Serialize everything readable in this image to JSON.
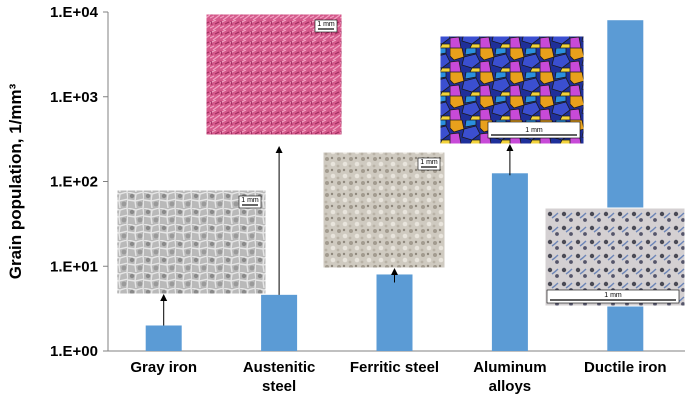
{
  "chart_data": {
    "type": "bar",
    "ylabel": "Grain population, 1/mm³",
    "yscale": "log",
    "ylim": [
      1,
      10000
    ],
    "yticks": [
      "1.E+00",
      "1.E+01",
      "1.E+02",
      "1.E+03",
      "1.E+04"
    ],
    "categories": [
      [
        "Gray iron"
      ],
      [
        "Austenitic",
        "steel"
      ],
      [
        "Ferritic steel"
      ],
      [
        "Aluminum",
        "alloys"
      ],
      [
        "Ductile iron"
      ]
    ],
    "values": [
      2,
      4.6,
      8,
      125,
      8000
    ],
    "bar_color": "#5b9bd5",
    "grid": false,
    "legend": "none",
    "insets": [
      {
        "category": "Gray iron",
        "content": "micrograph",
        "colors": [
          "#8c8c8c",
          "#cfcfcf"
        ],
        "scale_label": "1 mm"
      },
      {
        "category": "Austenitic steel",
        "content": "micrograph",
        "colors": [
          "#cc3f7a",
          "#e07aa8"
        ],
        "scale_label": "1 mm"
      },
      {
        "category": "Ferritic steel",
        "content": "micrograph",
        "colors": [
          "#b5ada0",
          "#dedad2"
        ],
        "scale_label": "1 mm"
      },
      {
        "category": "Aluminum alloys",
        "content": "micrograph",
        "colors": [
          "#2b3da8",
          "#e0a020"
        ],
        "scale_label": "1 mm"
      },
      {
        "category": "Ductile iron",
        "content": "micrograph",
        "colors": [
          "#c8c4c6",
          "#6a7aa0"
        ],
        "scale_label": "1 mm"
      }
    ]
  }
}
